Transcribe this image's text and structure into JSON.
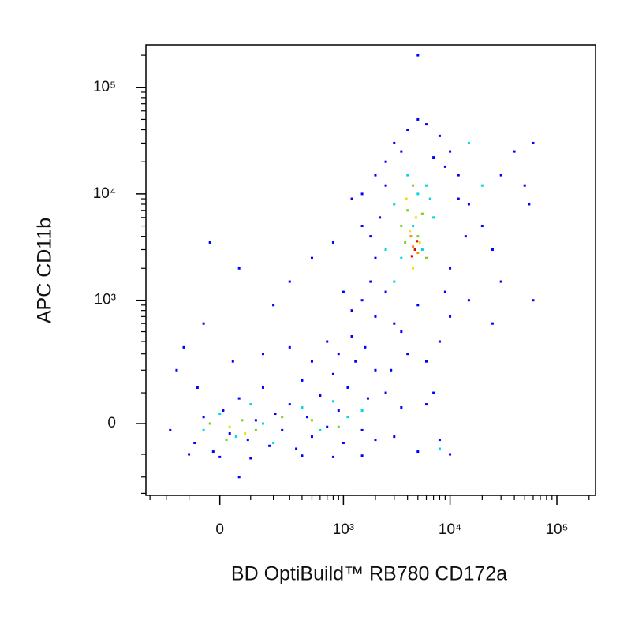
{
  "chart_data": {
    "type": "scatter",
    "xlabel": "BD OptiBuild™ RB780 CD172a",
    "ylabel": "APC CD11b",
    "xscale": "asinh",
    "yscale": "asinh",
    "xlim": [
      -330,
      230000
    ],
    "ylim": [
      -315,
      250000
    ],
    "xticks": [
      0,
      {
        "value": 1000,
        "label": "10³"
      },
      {
        "value": 10000,
        "label": "10⁴"
      },
      {
        "value": 100000,
        "label": "10⁵"
      }
    ],
    "yticks": [
      0,
      {
        "value": 1000,
        "label": "10³"
      },
      {
        "value": 10000,
        "label": "10⁴"
      },
      {
        "value": 100000,
        "label": "10⁵"
      }
    ],
    "xminorticks": [
      -300,
      -200,
      -100,
      100,
      200,
      300,
      400,
      500,
      600,
      700,
      800,
      900,
      2000,
      3000,
      4000,
      5000,
      6000,
      7000,
      8000,
      9000,
      20000,
      30000,
      40000,
      50000,
      60000,
      70000,
      80000,
      90000,
      200000
    ],
    "yminorticks": [
      -300,
      -200,
      -100,
      100,
      200,
      300,
      400,
      500,
      600,
      700,
      800,
      900,
      2000,
      3000,
      4000,
      5000,
      6000,
      7000,
      8000,
      9000,
      20000,
      30000,
      40000,
      50000,
      60000,
      70000,
      80000,
      90000,
      200000
    ],
    "series": [
      {
        "color": "#0000ff",
        "x": [
          -80,
          -50,
          -20,
          10,
          30,
          60,
          90,
          120,
          150,
          180,
          210,
          250,
          300,
          350,
          400,
          450,
          500,
          600,
          700,
          800,
          900,
          1000,
          1100,
          1300,
          1500,
          1700,
          2000,
          -150,
          -100,
          0,
          100,
          400,
          800,
          1500,
          -70,
          40,
          150,
          300,
          500,
          700,
          900,
          1200,
          1600,
          2000,
          2500,
          3000,
          3500,
          5000,
          6000,
          7000,
          -180,
          -120,
          -50,
          200,
          60,
          -30,
          60,
          500,
          800,
          300,
          1000,
          1200,
          1500,
          2000,
          1800,
          1500,
          1200,
          40000,
          60000,
          30000,
          50000,
          1500,
          2000,
          2500,
          3000,
          4000,
          5000,
          6000,
          8000,
          10000,
          12000,
          15000,
          20000,
          25000,
          30000,
          15000,
          10000,
          8000,
          6000,
          3000,
          2500,
          2000,
          1800,
          2200,
          2500,
          3500,
          7000,
          9000,
          12000,
          14000,
          10000,
          9000,
          5000,
          4000,
          3500,
          2800,
          25000,
          60000,
          5000,
          55000,
          10000,
          8000
        ],
        "y": [
          -60,
          20,
          -90,
          40,
          -30,
          80,
          -50,
          10,
          120,
          -70,
          30,
          -20,
          60,
          -80,
          150,
          20,
          -40,
          90,
          -10,
          180,
          40,
          -60,
          120,
          250,
          -20,
          80,
          -50,
          200,
          -100,
          -110,
          -115,
          -105,
          -110,
          -105,
          120,
          250,
          300,
          350,
          250,
          400,
          300,
          450,
          350,
          200,
          100,
          -40,
          50,
          -90,
          60,
          100,
          -20,
          350,
          600,
          900,
          -200,
          3500,
          2000,
          2500,
          3500,
          1500,
          1200,
          800,
          1000,
          700,
          1500,
          5000,
          9000,
          25000,
          30000,
          15000,
          12000,
          10000,
          15000,
          20000,
          30000,
          40000,
          50000,
          45000,
          35000,
          25000,
          15000,
          8000,
          5000,
          3000,
          1500,
          1000,
          700,
          400,
          250,
          600,
          1200,
          2500,
          4000,
          6000,
          12000,
          25000,
          22000,
          18000,
          9000,
          4000,
          2000,
          1200,
          900,
          300,
          500,
          200,
          600,
          1000,
          200000,
          8000,
          -100,
          -50
        ]
      },
      {
        "color": "#00d8e0",
        "x": [
          -50,
          0,
          50,
          100,
          150,
          200,
          400,
          600,
          800,
          1100,
          1500,
          3000,
          3500,
          4500,
          5000,
          6000,
          3000,
          4000,
          5500,
          7000,
          8000,
          2500,
          6500,
          15000,
          20000
        ],
        "y": [
          -20,
          30,
          -40,
          60,
          0,
          -60,
          50,
          -20,
          70,
          20,
          40,
          1500,
          2500,
          5000,
          10000,
          12000,
          8000,
          15000,
          3000,
          6000,
          -80,
          3000,
          9000,
          30000,
          12000
        ]
      },
      {
        "color": "#7fd020",
        "x": [
          -30,
          20,
          70,
          120,
          250,
          500,
          900,
          3500,
          4000,
          4500,
          5000,
          5500,
          3800,
          6000
        ],
        "y": [
          0,
          -50,
          10,
          -20,
          20,
          10,
          -10,
          5000,
          7000,
          12000,
          4000,
          6500,
          3500,
          2500
        ]
      },
      {
        "color": "#f0e000",
        "x": [
          30,
          80,
          4200,
          4800,
          5200,
          4500,
          3900
        ],
        "y": [
          -10,
          -30,
          4500,
          6000,
          3500,
          2000,
          9000
        ]
      },
      {
        "color": "#ff8c00",
        "x": [
          4500,
          5000,
          4300
        ],
        "y": [
          3200,
          2800,
          4000
        ]
      },
      {
        "color": "#e00000",
        "x": [
          4700,
          4900,
          4400
        ],
        "y": [
          3000,
          3600,
          2600
        ]
      }
    ]
  }
}
